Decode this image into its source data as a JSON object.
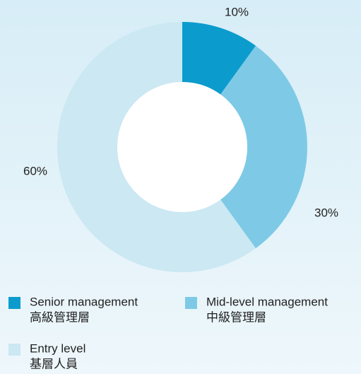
{
  "chart_data": {
    "type": "donut",
    "categories": [
      "Senior management",
      "Mid-level management",
      "Entry level"
    ],
    "categories_zh": [
      "高級管理層",
      "中級管理層",
      "基層人員"
    ],
    "values": [
      10,
      30,
      60
    ],
    "value_labels": [
      "10%",
      "30%",
      "60%"
    ],
    "colors": [
      "#0b9ccd",
      "#7ecae6",
      "#cbe8f3"
    ]
  }
}
